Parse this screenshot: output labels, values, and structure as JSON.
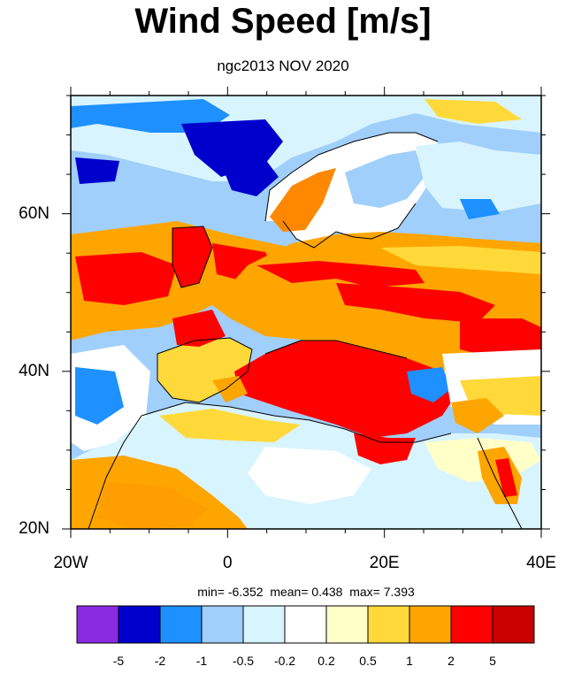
{
  "title": "Wind Speed [m/s]",
  "subtitle": "ngc2013 NOV 2020",
  "stats": {
    "min_label": "min=",
    "min": "-6.352",
    "mean_label": "mean=",
    "mean": "0.438",
    "max_label": "max=",
    "max": "7.393"
  },
  "map": {
    "lon_range": [
      -20,
      40
    ],
    "lat_range": [
      20,
      75
    ],
    "lon_ticks": [
      "20W",
      "0",
      "20E",
      "40E"
    ],
    "lat_ticks": [
      "20N",
      "40N",
      "60N"
    ]
  },
  "colorbar": {
    "colors": [
      "#8a2be2",
      "#0000cd",
      "#1e90ff",
      "#a0cffb",
      "#d8f4ff",
      "#ffffff",
      "#ffffc8",
      "#ffd93a",
      "#ffa500",
      "#ff0000",
      "#c80000"
    ],
    "labels": [
      "-5",
      "-2",
      "-1",
      "-0.5",
      "-0.2",
      "0.2",
      "0.5",
      "1",
      "2",
      "5"
    ]
  }
}
